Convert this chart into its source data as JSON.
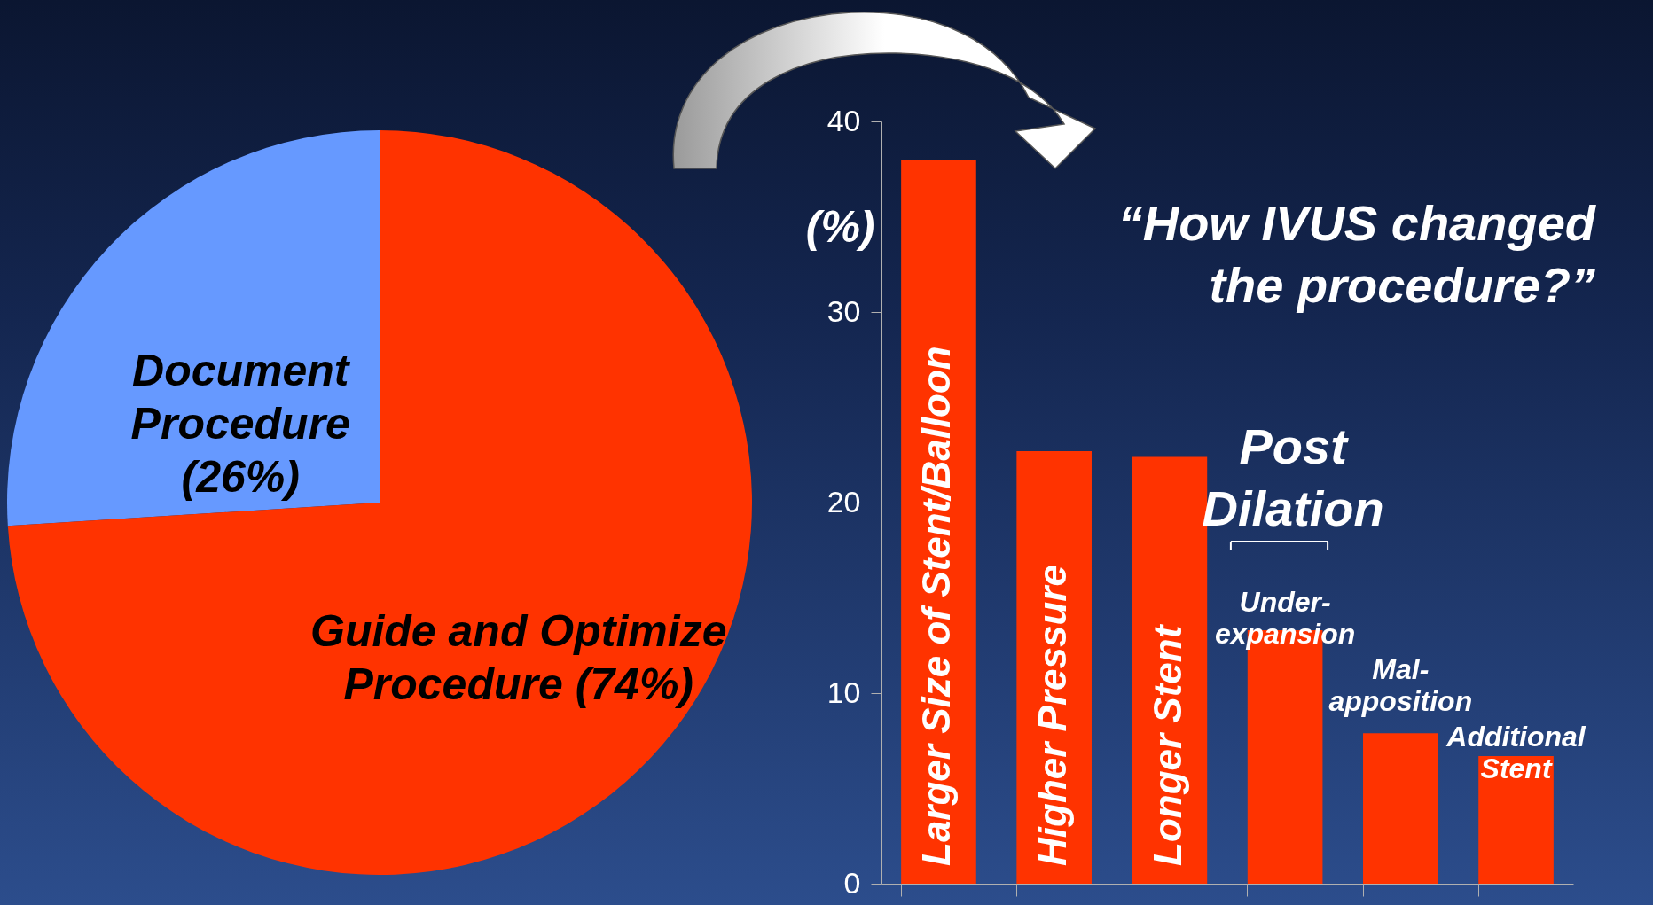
{
  "chart_data": [
    {
      "type": "pie",
      "categories": [
        "Document Procedure (26%)",
        "Guide and Optimize Procedure (74%)"
      ],
      "values": [
        26,
        74
      ],
      "colors": [
        "#6699ff",
        "#ff3300"
      ]
    },
    {
      "type": "bar",
      "title": "“How IVUS changed the procedure?”",
      "ylabel": "(%)",
      "categories": [
        "Larger Size of Stent/Balloon",
        "Higher Pressure",
        "Longer Stent",
        "Under-expansion",
        "Mal-apposition",
        "Additional Stent"
      ],
      "series": [
        {
          "color": "#ff3300",
          "values": [
            38,
            22.7,
            22.4,
            13.3,
            7.9,
            6.7
          ]
        }
      ],
      "ylim": [
        0,
        40
      ],
      "yticks": [
        0,
        10,
        20,
        30,
        40
      ],
      "tick_labels": "y",
      "annotations": [
        "Post Dilation"
      ]
    }
  ]
}
